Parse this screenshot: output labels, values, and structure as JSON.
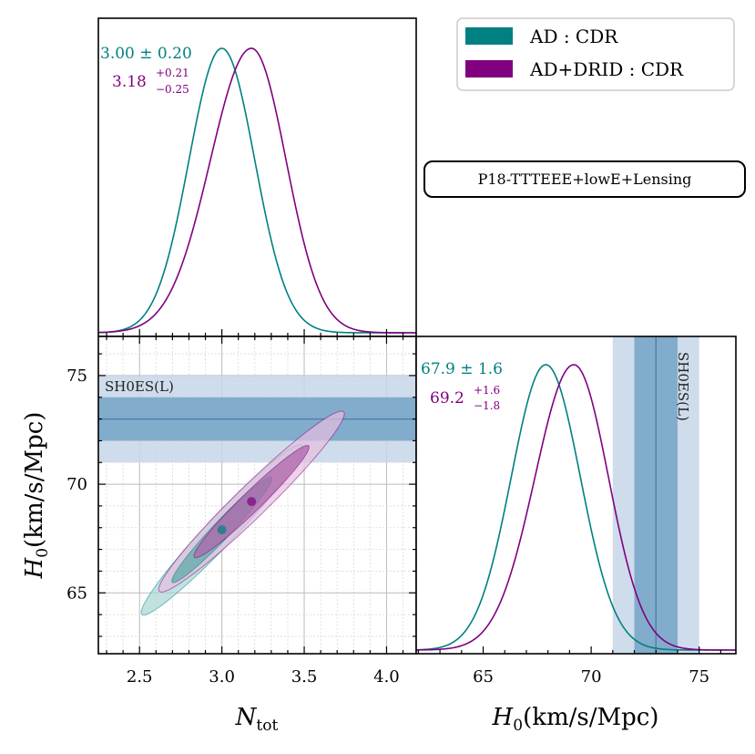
{
  "colors": {
    "teal": "#008080",
    "purple": "#800080",
    "teal_fill_outer": "#a8d6d6",
    "teal_fill_inner": "#5fa9a9",
    "purple_fill_outer": "#e6bfe0",
    "purple_fill_inner": "#b066ab",
    "shoes_outer": "#c6d6e8",
    "shoes_inner": "#7aa6c8",
    "shoes_line": "#4f82b0"
  },
  "legend": {
    "items": [
      {
        "label": "AD : CDR",
        "color": "#008080"
      },
      {
        "label": "AD+DRID : CDR",
        "color": "#800080"
      }
    ]
  },
  "dataset_label": "P18-TTTEEE+lowE+Lensing",
  "shoes_label": "SH0ES(L)",
  "chart_data": [
    {
      "type": "line",
      "panel": "Ntot-marginal",
      "xlim": [
        2.25,
        4.18
      ],
      "series": [
        {
          "name": "AD : CDR",
          "mean": 3.0,
          "sigma": 0.2
        },
        {
          "name": "AD+DRID : CDR",
          "mean": 3.18,
          "sigma_plus": 0.21,
          "sigma_minus": 0.25
        }
      ],
      "annotations": {
        "ad": "3.00 ± 0.20",
        "drid_main": "3.18",
        "drid_sup": "+0.21",
        "drid_sub": "−0.25"
      }
    },
    {
      "type": "scatter",
      "panel": "Ntot-H0-contours",
      "xlabel": "N",
      "xlabel_sub": "tot",
      "ylabel": "H",
      "ylabel_sub": "0",
      "ylabel_units": "(km/s/Mpc)",
      "xlim": [
        2.25,
        4.18
      ],
      "ylim": [
        62.2,
        76.8
      ],
      "x_ticks": [
        2.5,
        3.0,
        3.5,
        4.0
      ],
      "x_tick_labels": [
        "2.5",
        "3.0",
        "3.5",
        "4.0"
      ],
      "y_ticks": [
        65,
        70,
        75
      ],
      "y_tick_labels": [
        "65",
        "70",
        "75"
      ],
      "grid": true,
      "contours": [
        {
          "name": "AD : CDR",
          "center": [
            3.0,
            67.9
          ],
          "sx": 0.2,
          "sy": 1.6,
          "rho": 0.97
        },
        {
          "name": "AD+DRID : CDR",
          "center": [
            3.18,
            69.2
          ],
          "sx": 0.23,
          "sy": 1.7,
          "rho": 0.97
        }
      ],
      "band": {
        "name": "SH0ES(L)",
        "center": 73.0,
        "sigma": 1.0
      }
    },
    {
      "type": "line",
      "panel": "H0-marginal",
      "xlabel": "H",
      "xlabel_sub": "0",
      "xlabel_units": "(km/s/Mpc)",
      "xlim": [
        61.9,
        76.7
      ],
      "x_ticks": [
        65,
        70,
        75
      ],
      "x_tick_labels": [
        "65",
        "70",
        "75"
      ],
      "series": [
        {
          "name": "AD : CDR",
          "mean": 67.9,
          "sigma": 1.6
        },
        {
          "name": "AD+DRID : CDR",
          "mean": 69.2,
          "sigma_plus": 1.6,
          "sigma_minus": 1.8
        }
      ],
      "band": {
        "name": "SH0ES(L)",
        "center": 73.0,
        "sigma": 1.0
      },
      "annotations": {
        "ad": "67.9 ± 1.6",
        "drid_main": "69.2",
        "drid_sup": "+1.6",
        "drid_sub": "−1.8"
      }
    }
  ]
}
